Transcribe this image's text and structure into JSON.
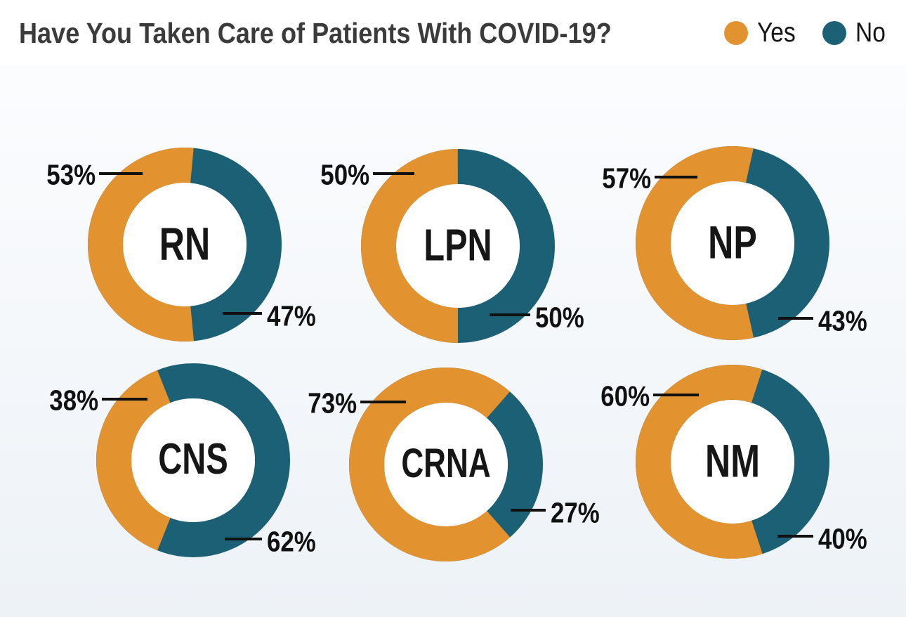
{
  "title": "Have You Taken Care of Patients With COVID-19?",
  "legend": {
    "yes_label": "Yes",
    "no_label": "No"
  },
  "colors": {
    "yes": "#E2922F",
    "no": "#1C6076",
    "title_text": "#3B3B3B",
    "label_text": "#111111",
    "donut_hole": "#FFFFFF",
    "panel_top": "#FBFCFE",
    "panel_bottom": "#EDF2F7"
  },
  "chart_data": {
    "type": "pie",
    "subtype": "donut-grid",
    "title": "Have You Taken Care of Patients With COVID-19?",
    "series_labels": [
      "Yes",
      "No"
    ],
    "legend_position": "top-right",
    "units": "percent",
    "donuts": [
      {
        "group": "RN",
        "yes": 53,
        "no": 47,
        "yes_label": "53%",
        "no_label": "47%"
      },
      {
        "group": "LPN",
        "yes": 50,
        "no": 50,
        "yes_label": "50%",
        "no_label": "50%"
      },
      {
        "group": "NP",
        "yes": 57,
        "no": 43,
        "yes_label": "57%",
        "no_label": "43%"
      },
      {
        "group": "CNS",
        "yes": 38,
        "no": 62,
        "yes_label": "38%",
        "no_label": "62%"
      },
      {
        "group": "CRNA",
        "yes": 73,
        "no": 27,
        "yes_label": "73%",
        "no_label": "27%"
      },
      {
        "group": "NM",
        "yes": 60,
        "no": 40,
        "yes_label": "60%",
        "no_label": "40%"
      }
    ]
  }
}
